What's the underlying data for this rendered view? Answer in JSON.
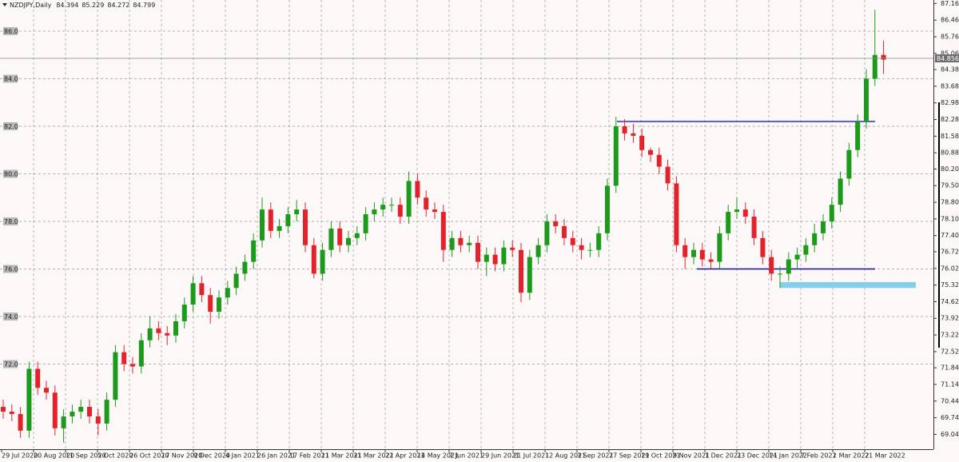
{
  "chart_data": {
    "type": "candlestick",
    "symbol": "NZDJPY,Daily",
    "header_values": [
      84.394,
      85.229,
      84.272,
      84.799
    ],
    "categories": [
      "29 Jul 2020",
      "20 Aug 2020",
      "11 Sep 2020",
      "5 Oct 2020",
      "26 Oct 2020",
      "17 Nov 2020",
      "9 Dec 2020",
      "4 Jan 2021",
      "26 Jan 2021",
      "17 Feb 2021",
      "11 Mar 2021",
      "31 Mar 2021",
      "22 Apr 2021",
      "14 May 2021",
      "7 Jun 2021",
      "29 Jun 2021",
      "21 Jul 2021",
      "12 Aug 2021",
      "3 Sep 2021",
      "27 Sep 2021",
      "19 Oct 2021",
      "9 Nov 2021",
      "1 Dec 2021",
      "23 Dec 2021",
      "14 Jan 2022",
      "7 Feb 2022",
      "1 Mar 2022",
      "21 Mar 2022"
    ],
    "candles": {
      "open": [
        70.2,
        70.0,
        69.9,
        69.2,
        71.8,
        71.0,
        70.8,
        69.3,
        69.8,
        70.0,
        70.2,
        69.8,
        69.5,
        70.5,
        72.5,
        72.0,
        71.9,
        73.0,
        73.5,
        73.3,
        73.2,
        73.8,
        74.5,
        75.4,
        74.9,
        74.2,
        74.8,
        75.2,
        75.8,
        76.3,
        77.2,
        78.5,
        77.6,
        77.8,
        78.3,
        78.5,
        77.0,
        75.8,
        76.8,
        77.7,
        77.0,
        77.3,
        77.5,
        78.3,
        78.5,
        78.7,
        78.7,
        78.2,
        79.7,
        79.0,
        78.5,
        78.4,
        76.8,
        77.3,
        77.0,
        77.1,
        76.3,
        76.6,
        76.2,
        76.9,
        76.8,
        75.0,
        76.5,
        77.0,
        78.0,
        77.8,
        77.3,
        77.0,
        76.8,
        76.8,
        77.5,
        79.5,
        82.0,
        81.7,
        81.6,
        81.0,
        80.8,
        80.3,
        79.6,
        77.0,
        76.5,
        76.8,
        76.4,
        76.3,
        77.5,
        78.4,
        78.5,
        78.2,
        77.3,
        76.5,
        75.8,
        75.8,
        76.4,
        76.6,
        77.0,
        77.5,
        78.0,
        78.7,
        79.8,
        81.0,
        82.2,
        84.0,
        85.0
      ],
      "high": [
        70.5,
        70.3,
        70.2,
        72.1,
        72.1,
        71.3,
        71.1,
        70.1,
        70.3,
        70.5,
        70.5,
        70.1,
        70.8,
        72.8,
        72.8,
        72.3,
        73.3,
        74.0,
        73.8,
        73.6,
        74.1,
        74.8,
        75.7,
        75.7,
        75.2,
        75.1,
        75.5,
        76.1,
        76.6,
        77.5,
        79.0,
        78.8,
        78.1,
        78.6,
        78.9,
        78.8,
        77.3,
        77.1,
        78.0,
        78.0,
        77.6,
        77.8,
        78.6,
        78.8,
        79.0,
        79.0,
        79.0,
        80.1,
        80.0,
        79.3,
        78.8,
        78.7,
        77.6,
        77.6,
        77.4,
        77.4,
        76.9,
        76.9,
        77.2,
        77.2,
        77.1,
        76.8,
        77.3,
        78.3,
        78.3,
        78.1,
        77.6,
        77.3,
        77.1,
        77.8,
        79.8,
        82.4,
        82.3,
        82.1,
        81.9,
        81.1,
        81.1,
        80.6,
        79.9,
        77.3,
        77.1,
        77.1,
        76.7,
        77.8,
        78.7,
        79.0,
        78.8,
        78.5,
        77.6,
        76.8,
        76.1,
        76.7,
        76.9,
        77.3,
        77.9,
        78.3,
        79.0,
        80.1,
        81.3,
        82.5,
        84.4,
        86.9,
        85.6
      ],
      "low": [
        69.7,
        69.6,
        68.9,
        68.9,
        70.7,
        70.5,
        69.0,
        68.7,
        69.5,
        69.7,
        69.5,
        69.0,
        69.2,
        70.2,
        71.7,
        71.6,
        71.6,
        72.7,
        73.0,
        72.8,
        72.9,
        73.5,
        74.2,
        74.6,
        73.7,
        73.9,
        74.5,
        74.9,
        75.5,
        76.0,
        76.9,
        77.3,
        77.3,
        77.5,
        78.0,
        76.7,
        75.6,
        75.5,
        76.5,
        76.7,
        76.7,
        77.0,
        77.2,
        78.0,
        78.2,
        78.4,
        77.9,
        77.9,
        78.7,
        78.2,
        78.1,
        76.3,
        76.5,
        76.7,
        76.7,
        76.0,
        75.7,
        75.9,
        75.9,
        76.5,
        74.6,
        74.7,
        76.2,
        76.7,
        77.5,
        77.0,
        76.7,
        76.4,
        76.5,
        76.5,
        77.2,
        79.2,
        81.4,
        81.3,
        80.7,
        80.5,
        80.0,
        79.3,
        76.7,
        76.0,
        76.2,
        76.1,
        76.0,
        76.0,
        77.2,
        78.1,
        77.9,
        77.0,
        76.2,
        75.5,
        75.2,
        75.5,
        76.0,
        76.3,
        76.7,
        77.2,
        77.7,
        78.4,
        79.5,
        80.7,
        81.9,
        83.7,
        84.2
      ],
      "close": [
        70.0,
        69.9,
        69.2,
        71.8,
        71.0,
        70.8,
        69.3,
        69.8,
        70.0,
        70.2,
        69.8,
        69.5,
        70.5,
        72.5,
        72.0,
        71.9,
        73.0,
        73.5,
        73.3,
        73.2,
        73.8,
        74.5,
        75.4,
        74.9,
        74.2,
        74.8,
        75.2,
        75.8,
        76.3,
        77.2,
        78.5,
        77.6,
        77.8,
        78.3,
        78.5,
        77.0,
        75.8,
        76.8,
        77.7,
        77.0,
        77.3,
        77.5,
        78.3,
        78.5,
        78.7,
        78.7,
        78.2,
        79.7,
        79.0,
        78.5,
        78.4,
        76.8,
        77.3,
        77.0,
        77.1,
        76.3,
        76.6,
        76.2,
        76.9,
        76.8,
        75.0,
        76.5,
        77.0,
        78.0,
        77.8,
        77.3,
        77.0,
        76.8,
        76.8,
        77.5,
        79.5,
        82.0,
        81.7,
        81.6,
        81.0,
        80.8,
        80.3,
        79.6,
        77.0,
        76.5,
        76.8,
        76.4,
        76.3,
        77.5,
        78.4,
        78.5,
        78.2,
        77.3,
        76.5,
        75.8,
        75.8,
        76.4,
        76.6,
        77.0,
        77.5,
        78.0,
        78.7,
        79.8,
        81.0,
        82.2,
        84.0,
        85.0,
        84.8
      ]
    },
    "up_color": "#1b9a1b",
    "down_color": "#e3232b",
    "ylim": [
      68.42,
      87.31
    ],
    "yticks": [
      87.164,
      86.464,
      85.764,
      85.064,
      84.384,
      83.684,
      82.984,
      82.284,
      81.584,
      80.884,
      80.204,
      79.504,
      78.804,
      78.104,
      77.404,
      76.724,
      76.024,
      75.324,
      74.624,
      73.924,
      73.224,
      72.524,
      71.844,
      71.144,
      70.444,
      69.744,
      69.044
    ],
    "levels": [
      {
        "value": 86,
        "label": "86.0"
      },
      {
        "value": 84,
        "label": "84.0"
      },
      {
        "value": 82,
        "label": "82.0"
      },
      {
        "value": 80,
        "label": "80.0"
      },
      {
        "value": 78,
        "label": "78.0"
      },
      {
        "value": 76,
        "label": "76.0"
      },
      {
        "value": 74,
        "label": "74.0"
      },
      {
        "value": 72,
        "label": "72.0"
      }
    ],
    "current_price": 84.856,
    "lines": [
      {
        "value": 82.2,
        "color": "#2a2ae8"
      },
      {
        "value": 76.0,
        "color": "#10109a"
      }
    ],
    "zone": {
      "range": [
        75.2,
        75.45
      ],
      "color": "#87ceeb"
    },
    "grid": true
  }
}
